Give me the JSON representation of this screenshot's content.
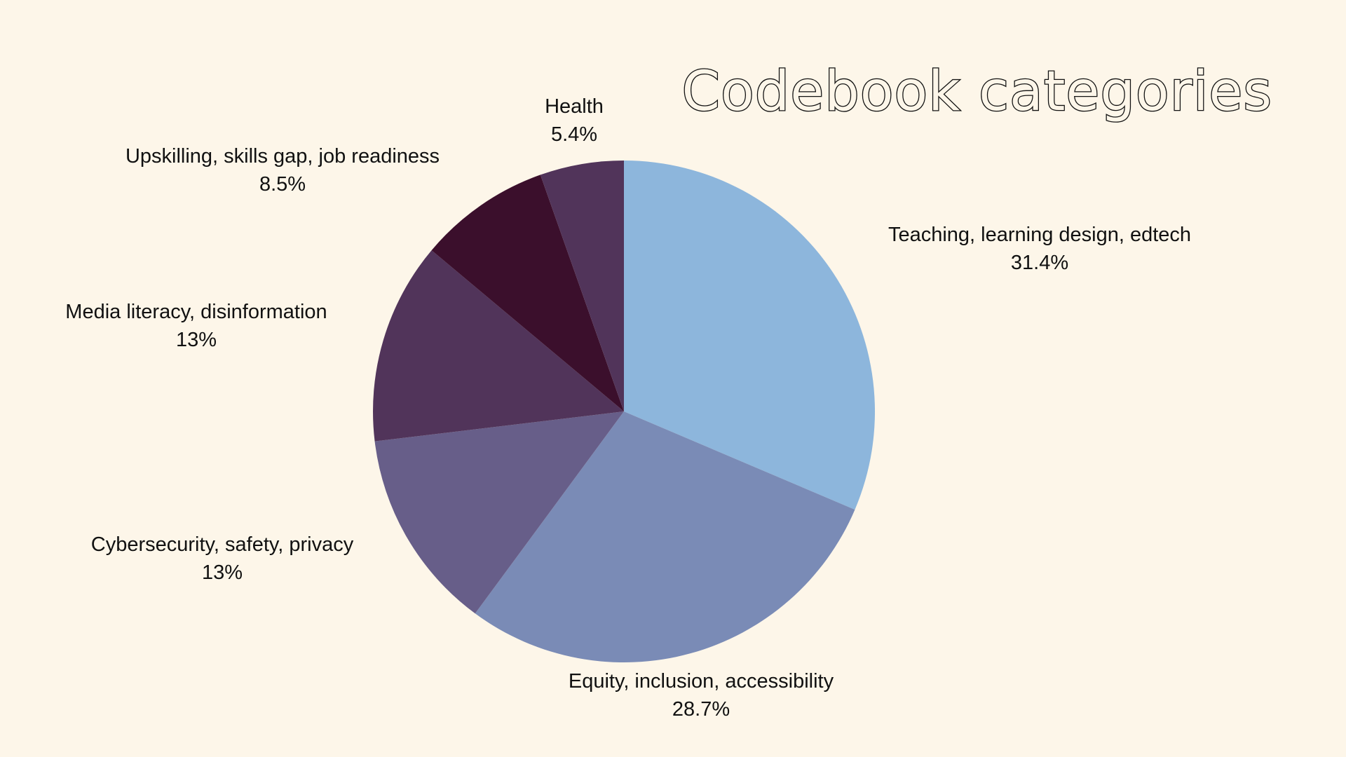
{
  "chart_data": {
    "type": "pie",
    "title": "Codebook categories",
    "start_angle_deg": 0,
    "direction": "clockwise",
    "slices": [
      {
        "label": "Teaching, learning design, edtech",
        "value_label": "31.4%",
        "value": 31.4,
        "color": "#8db6dc"
      },
      {
        "label": "Equity, inclusion, accessibility",
        "value_label": "28.7%",
        "value": 28.7,
        "color": "#7a8bb6"
      },
      {
        "label": "Cybersecurity, safety, privacy",
        "value_label": "13%",
        "value": 13.0,
        "color": "#675e89"
      },
      {
        "label": "Media literacy, disinformation",
        "value_label": "13%",
        "value": 13.0,
        "color": "#51345a"
      },
      {
        "label": "Upskilling, skills gap, job readiness",
        "value_label": "8.5%",
        "value": 8.5,
        "color": "#3b0f2c"
      },
      {
        "label": "Health",
        "value_label": "5.4%",
        "value": 5.4,
        "color": "#51345a"
      }
    ]
  }
}
